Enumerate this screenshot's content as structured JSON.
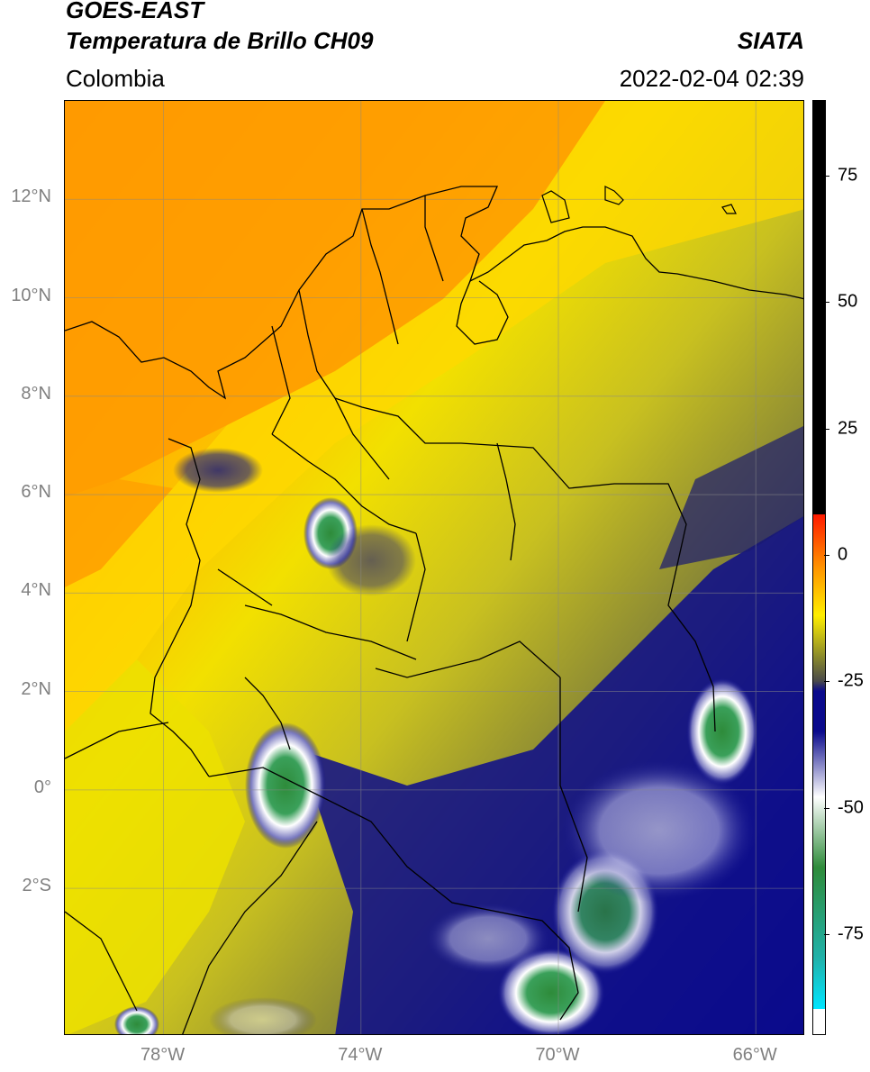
{
  "header": {
    "line1": "GOES-EAST",
    "line2": "Temperatura de Brillo CH09",
    "region": "Colombia",
    "org": "SIATA",
    "datetime": "2022-02-04 02:39"
  },
  "map": {
    "lat_ticks": [
      "12°N",
      "10°N",
      "8°N",
      "6°N",
      "4°N",
      "2°N",
      "0°",
      "2°S"
    ],
    "lon_ticks": [
      "78°W",
      "74°W",
      "70°W",
      "66°W"
    ],
    "lat_values": [
      12,
      10,
      8,
      6,
      4,
      2,
      0,
      -2
    ],
    "lon_values": [
      -78,
      -74,
      -70,
      -66
    ],
    "extent": {
      "lon_min": -80,
      "lon_max": -65,
      "lat_min": -5,
      "lat_max": 14
    },
    "grid": true
  },
  "colorbar": {
    "labels": [
      "75",
      "50",
      "25",
      "0",
      "-25",
      "-50",
      "-75"
    ],
    "values": [
      75,
      50,
      25,
      0,
      -25,
      -50,
      -75
    ],
    "range": [
      -95,
      90
    ],
    "colors": {
      "warm_black": "#000000",
      "red": "#ff1a00",
      "orange": "#ff9900",
      "yellow": "#ffee00",
      "olive": "#8c8c2a",
      "gray": "#4a4a4a",
      "navy": "#0a0a8c",
      "white": "#ffffff",
      "green": "#2e8b3a",
      "teal": "#20b2aa",
      "cyan": "#00e5ff"
    }
  }
}
